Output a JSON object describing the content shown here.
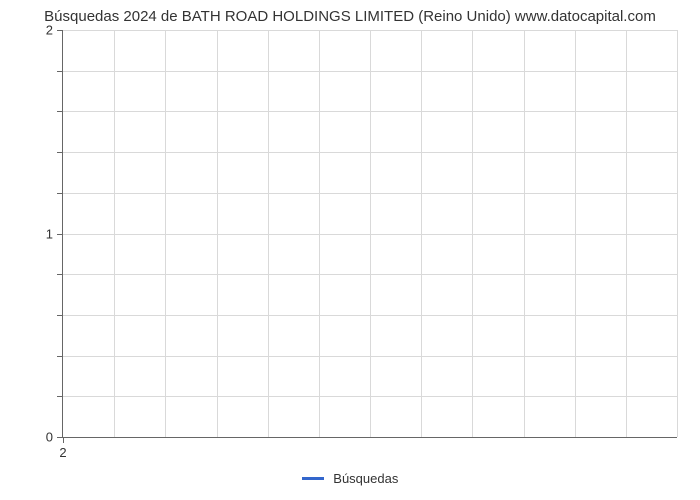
{
  "chart": {
    "type": "line",
    "title": "Búsquedas 2024 de BATH ROAD HOLDINGS LIMITED (Reino Unido) www.datocapital.com",
    "title_fontsize": 15,
    "title_color": "#333333",
    "background_color": "#ffffff",
    "plot_border_color": "#666666",
    "grid_color": "#d9d9d9",
    "xlim": [
      2,
      2
    ],
    "ylim": [
      0,
      2
    ],
    "ytick_major": [
      0,
      1,
      2
    ],
    "ytick_minor_count_between": 4,
    "xtick_major": [
      2
    ],
    "xtick_vertical_count": 12,
    "series": [
      {
        "name": "Búsquedas",
        "color": "#3366cc",
        "line_width": 3,
        "data": []
      }
    ],
    "legend": {
      "position": "bottom-center",
      "items": [
        {
          "label": "Búsquedas",
          "color": "#3366cc"
        }
      ]
    },
    "tick_label_fontsize": 13,
    "tick_label_color": "#333333"
  }
}
